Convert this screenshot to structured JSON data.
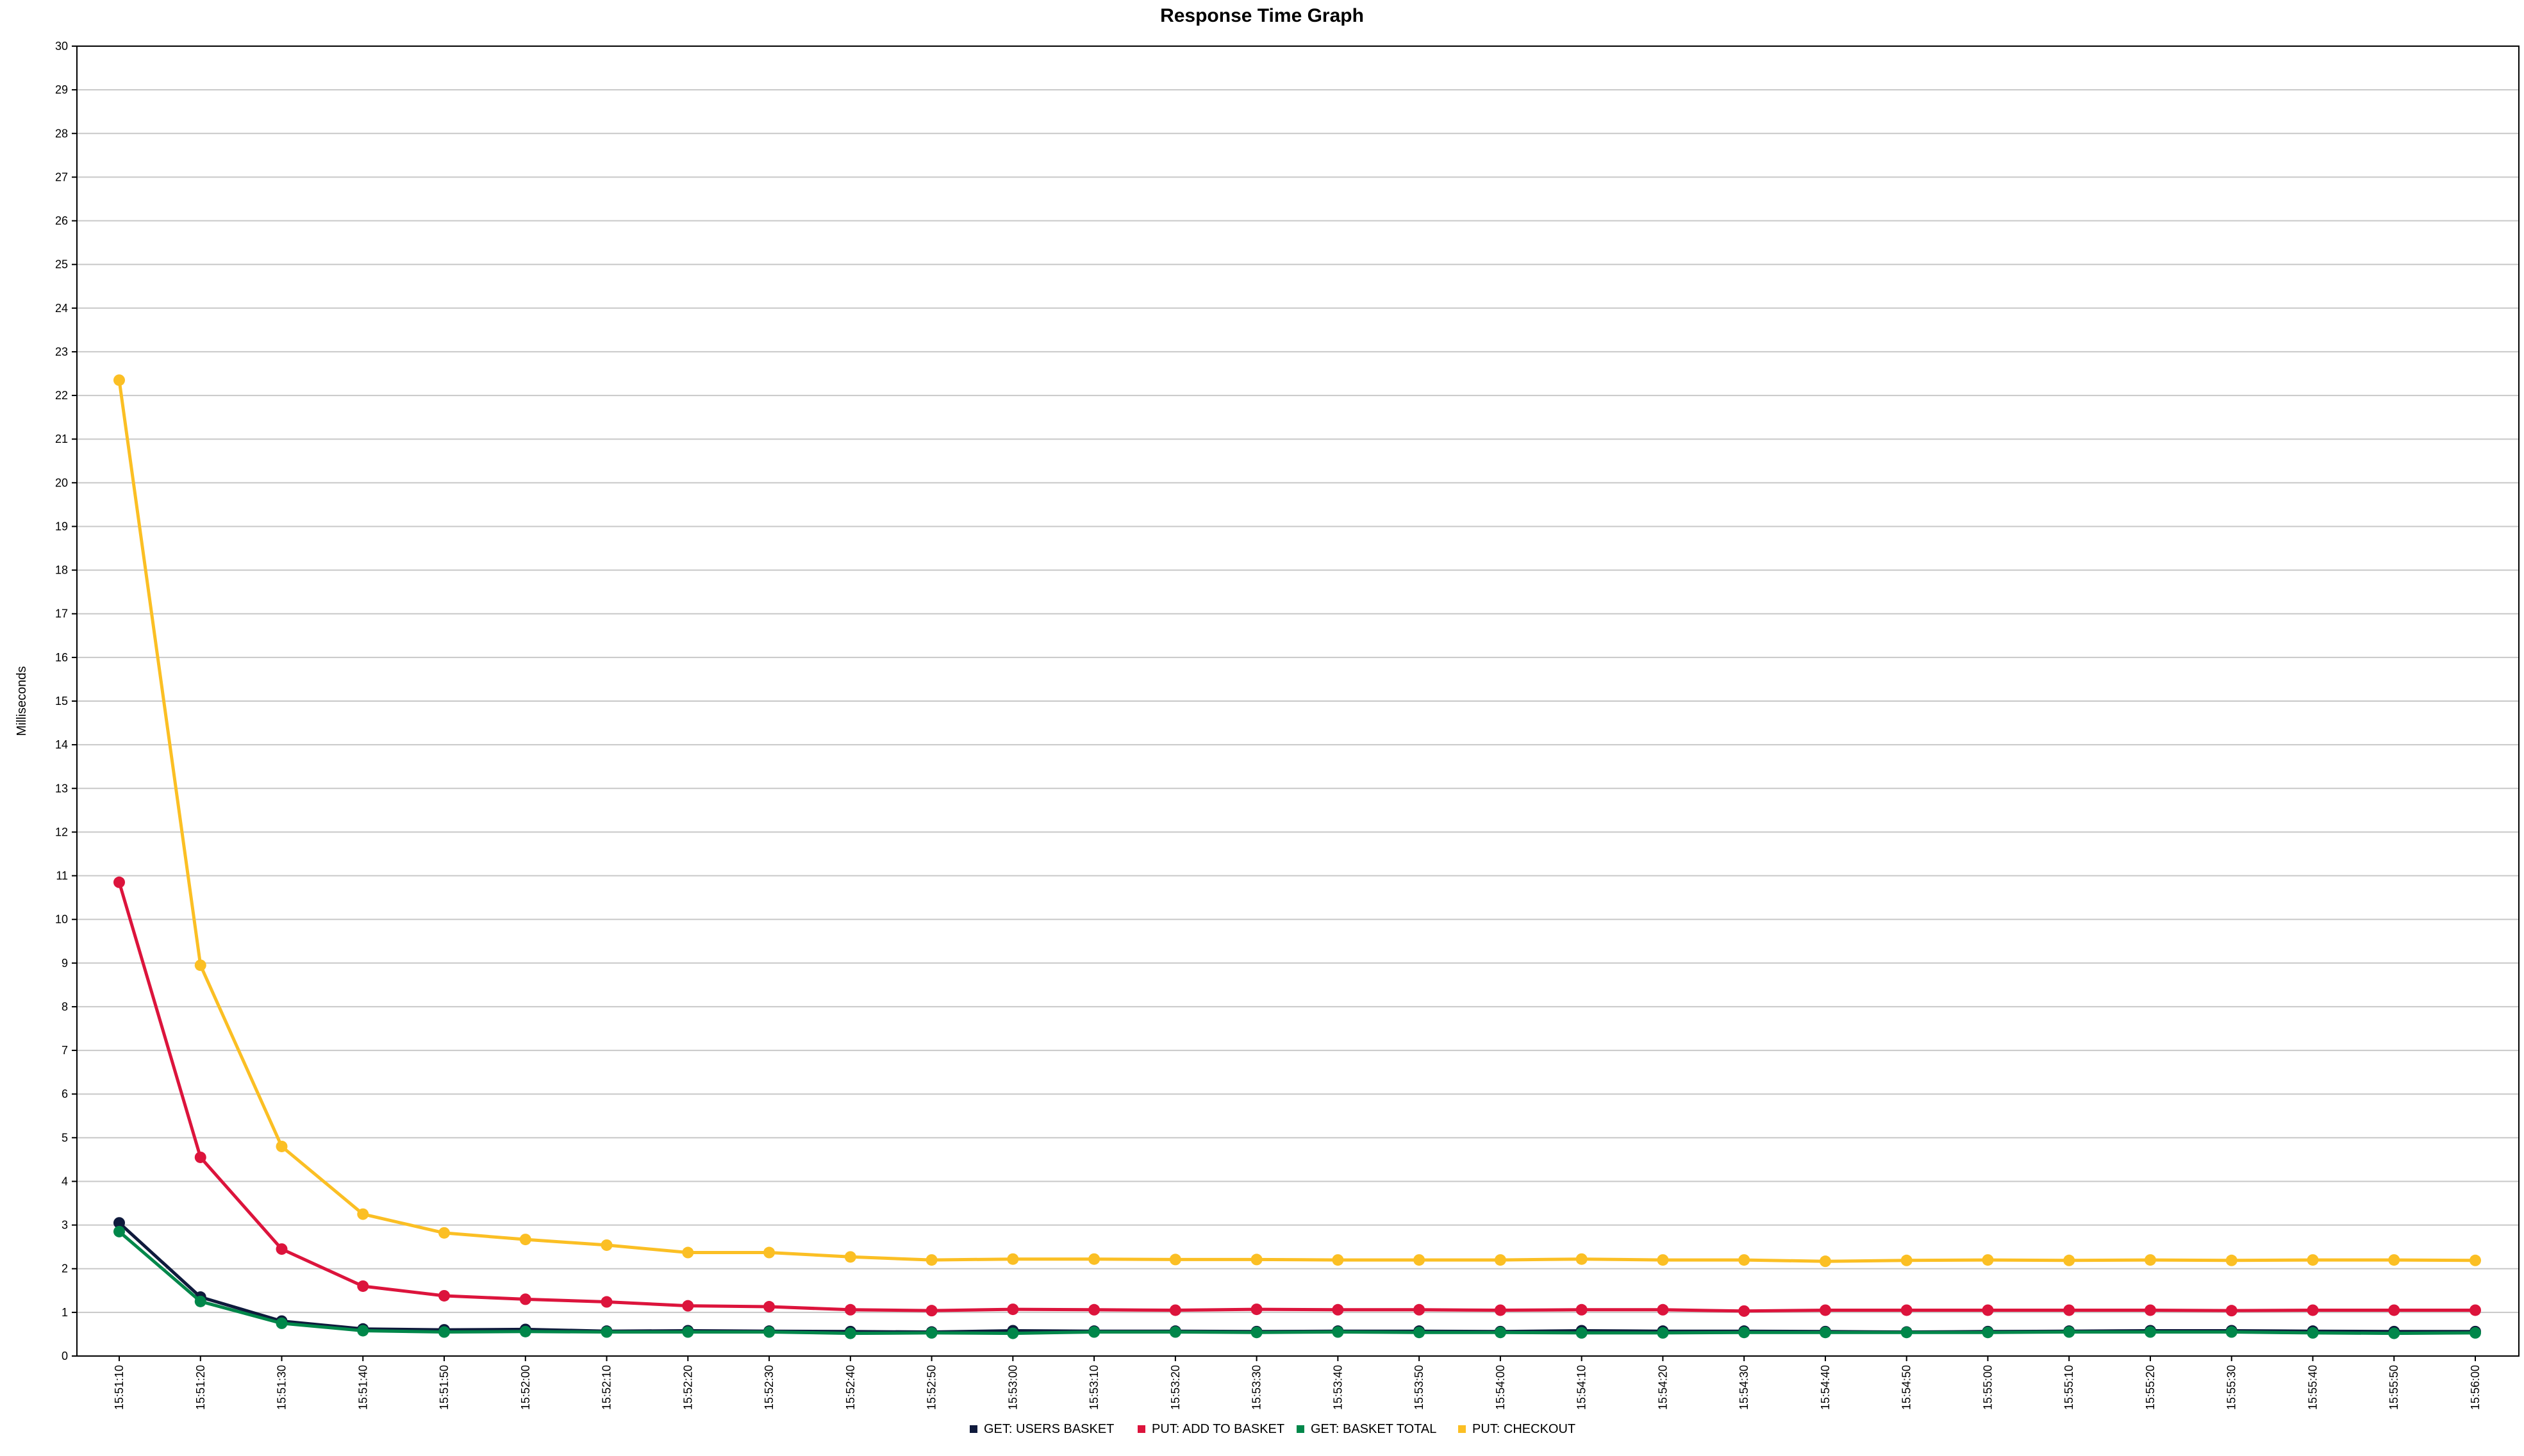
{
  "chart_data": {
    "type": "line",
    "title": "Response Time Graph",
    "xlabel": "",
    "ylabel": "Milliseconds",
    "ylim": [
      0,
      30
    ],
    "yticks": [
      0,
      1,
      2,
      3,
      4,
      5,
      6,
      7,
      8,
      9,
      10,
      11,
      12,
      13,
      14,
      15,
      16,
      17,
      18,
      19,
      20,
      21,
      22,
      23,
      24,
      25,
      26,
      27,
      28,
      29,
      30
    ],
    "grid": true,
    "legend_position": "bottom",
    "categories": [
      "15:51:10",
      "15:51:20",
      "15:51:30",
      "15:51:40",
      "15:51:50",
      "15:52:00",
      "15:52:10",
      "15:52:20",
      "15:52:30",
      "15:52:40",
      "15:52:50",
      "15:53:00",
      "15:53:10",
      "15:53:20",
      "15:53:30",
      "15:53:40",
      "15:53:50",
      "15:54:00",
      "15:54:10",
      "15:54:20",
      "15:54:30",
      "15:54:40",
      "15:54:50",
      "15:55:00",
      "15:55:10",
      "15:55:20",
      "15:55:30",
      "15:55:40",
      "15:55:50",
      "15:56:00"
    ],
    "series": [
      {
        "name": "GET: USERS BASKET",
        "color": "#0f1a3c",
        "values": [
          3.05,
          1.35,
          0.8,
          0.62,
          0.6,
          0.61,
          0.57,
          0.58,
          0.57,
          0.56,
          0.55,
          0.58,
          0.57,
          0.57,
          0.56,
          0.57,
          0.57,
          0.56,
          0.58,
          0.57,
          0.57,
          0.56,
          0.55,
          0.56,
          0.57,
          0.58,
          0.58,
          0.57,
          0.56,
          0.56
        ]
      },
      {
        "name": "PUT: ADD TO BASKET",
        "color": "#dc143c",
        "values": [
          10.85,
          4.55,
          2.45,
          1.6,
          1.38,
          1.3,
          1.24,
          1.15,
          1.13,
          1.06,
          1.04,
          1.07,
          1.06,
          1.05,
          1.07,
          1.06,
          1.06,
          1.05,
          1.06,
          1.06,
          1.03,
          1.05,
          1.05,
          1.05,
          1.05,
          1.05,
          1.04,
          1.05,
          1.05,
          1.05
        ]
      },
      {
        "name": "GET: BASKET TOTAL",
        "color": "#00874a",
        "values": [
          2.85,
          1.25,
          0.75,
          0.58,
          0.55,
          0.56,
          0.55,
          0.55,
          0.55,
          0.52,
          0.53,
          0.52,
          0.55,
          0.55,
          0.54,
          0.55,
          0.54,
          0.54,
          0.53,
          0.53,
          0.54,
          0.54,
          0.54,
          0.54,
          0.55,
          0.55,
          0.55,
          0.53,
          0.52,
          0.53
        ]
      },
      {
        "name": "PUT: CHECKOUT",
        "color": "#fbbf24",
        "values": [
          22.35,
          8.95,
          4.8,
          3.25,
          2.82,
          2.67,
          2.54,
          2.37,
          2.37,
          2.27,
          2.2,
          2.22,
          2.22,
          2.21,
          2.21,
          2.2,
          2.2,
          2.2,
          2.22,
          2.2,
          2.2,
          2.17,
          2.19,
          2.2,
          2.19,
          2.2,
          2.19,
          2.2,
          2.2,
          2.19
        ]
      }
    ]
  }
}
